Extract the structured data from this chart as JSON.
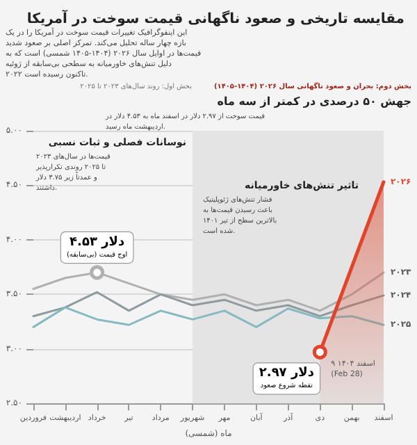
{
  "chart_data": {
    "type": "line",
    "title": "مقایسه تاریخی و صعود ناگهانی قیمت سوخت در آمریکا",
    "subtitle": "این اینفوگرافیک تغییرات قیمت سوخت در آمریکا را در یک بازه چهار ساله تحلیل می‌کند. تمرکز اصلی بر صعود شدید قیمت‌ها در اوایل سال ۲۰۲۶ (۱۴۰۴-۱۴۰۵ شمسی) است که به دلیل تنش‌های خاورمیانه به سطحی بی‌سابقه از ژوئیه ۲۰۲۲ تاکنون رسیده است.",
    "xlabel": "ماه (شمسی)",
    "categories": [
      "فروردین",
      "اردیبهشت",
      "خرداد",
      "تیر",
      "مرداد",
      "شهریور",
      "مهر",
      "آبان",
      "آذر",
      "دی",
      "بهمن",
      "اسفند"
    ],
    "series": [
      {
        "name": "۲۰۲۳",
        "color": "#b0b0b0",
        "values": [
          3.55,
          3.65,
          3.7,
          3.6,
          3.5,
          3.45,
          3.5,
          3.4,
          3.45,
          3.35,
          3.5,
          3.7
        ]
      },
      {
        "name": "۲۰۲۴",
        "color": "#8f9a9f",
        "values": [
          3.3,
          3.38,
          3.52,
          3.35,
          3.5,
          3.4,
          3.45,
          3.35,
          3.4,
          3.3,
          3.4,
          3.49
        ]
      },
      {
        "name": "۲۰۲۵",
        "color": "#86b9c0",
        "values": [
          3.2,
          3.38,
          3.27,
          3.22,
          3.35,
          3.27,
          3.35,
          3.2,
          3.37,
          3.28,
          3.3,
          3.22
        ]
      },
      {
        "name": "۲۰۲۶",
        "color": "#e0452b",
        "type": "area",
        "values": [
          null,
          null,
          null,
          null,
          null,
          null,
          null,
          null,
          null,
          2.97,
          3.75,
          4.53
        ]
      }
    ],
    "ylim": [
      2.5,
      5.0
    ],
    "yticks": [
      {
        "value": 2.5,
        "label": "۲.۵۰"
      },
      {
        "value": 3.0,
        "label": "۳.۰۰"
      },
      {
        "value": 3.5,
        "label": "۳.۵۰"
      },
      {
        "value": 4.0,
        "label": "۴.۰۰"
      },
      {
        "value": 4.5,
        "label": "۴.۵۰"
      },
      {
        "value": 5.0,
        "label": "۵.۰۰"
      }
    ],
    "grid": "y",
    "legend": false,
    "marker": "none",
    "line_style": "solid",
    "bands": [
      {
        "axis": "x",
        "from": "شهریور",
        "to": "اسفند",
        "color": "#e4e4e4"
      }
    ],
    "annotations": [
      "بخش اول: روند سال‌های ۲۰۲۳ تا ۲۰۲۵",
      "بخش دوم: بحران و صعود ناگهانی سال ۲۰۲۶ (۱۴۰۴-۱۴۰۵)",
      "جهش ۵۰ درصدی در کمتر از سه ماه\nقیمت سوخت از ۲.۹۷ دلار در اسفند ماه به ۴.۵۳ دلار در اردیبهشت ماه رسید.",
      "نوسانات فصلی و ثبات نسبی\nقیمت‌ها در سال‌های ۲۰۲۳ تا ۲۰۲۵ روندی تکرارپذیر و عمدتاً زیر ۳.۷۵ دلار داشتند.",
      "تاثیر تنش‌های خاورمیانه\nفشار تنش‌های ژئوپلیتیک باعث رسیدن قیمت‌ها به بالاترین سطح از تیر ۱۴۰۱ شده است.",
      {
        "text": "۴.۵۳ دلار\nاوج قیمت (بی‌سابقه)",
        "x": "خرداد",
        "y": 3.7
      },
      {
        "text": "۲.۹۷ دلار\nنقطه شروع صعود",
        "x": "دی",
        "y": 2.97
      },
      {
        "text": "۹ اسفند ۱۴۰۴\n(Feb 28)",
        "x": "دی",
        "y": 2.97
      }
    ]
  }
}
